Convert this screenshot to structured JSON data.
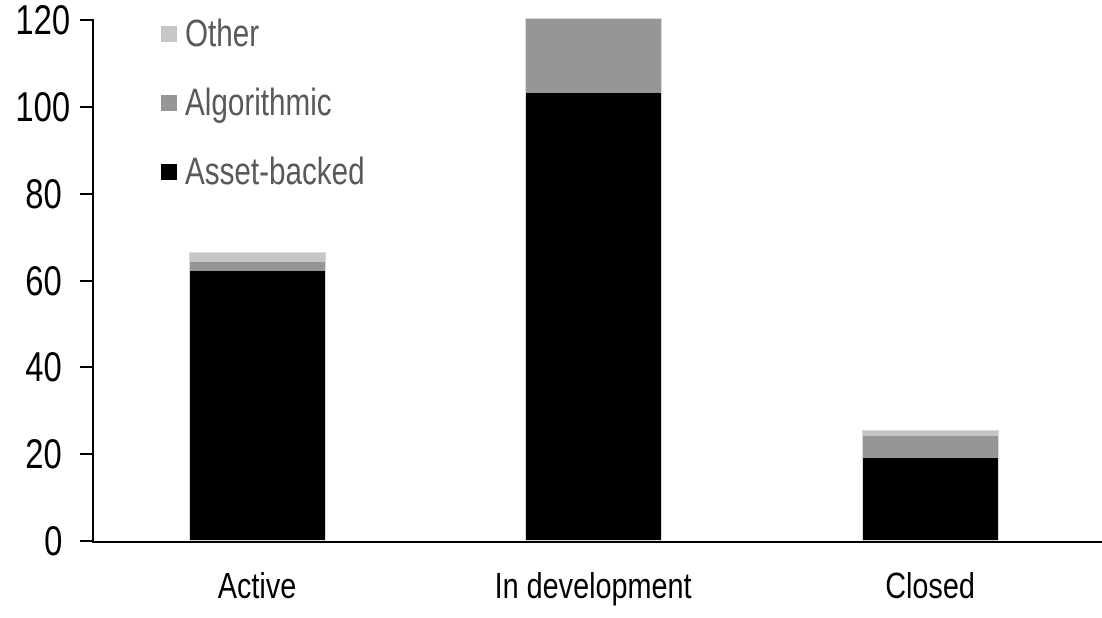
{
  "chart_data": {
    "type": "bar",
    "stacked": true,
    "title": "",
    "xlabel": "",
    "ylabel": "",
    "categories": [
      "Active",
      "In development",
      "Closed"
    ],
    "series": [
      {
        "name": "Asset-backed",
        "color": "#000000",
        "values": [
          62,
          103,
          19
        ]
      },
      {
        "name": "Algorithmic",
        "color": "#969696",
        "values": [
          2,
          17,
          5
        ]
      },
      {
        "name": "Other",
        "color": "#c6c6c6",
        "values": [
          2,
          0,
          1
        ]
      }
    ],
    "ylim": [
      0,
      120
    ],
    "yticks": [
      0,
      20,
      40,
      60,
      80,
      100,
      120
    ],
    "grid": false,
    "legend": {
      "position": "top-left",
      "order": [
        "Other",
        "Algorithmic",
        "Asset-backed"
      ],
      "text_color": "#595959"
    },
    "axis_color": "#000000",
    "bar_outline_color": "#d9d9d9"
  }
}
